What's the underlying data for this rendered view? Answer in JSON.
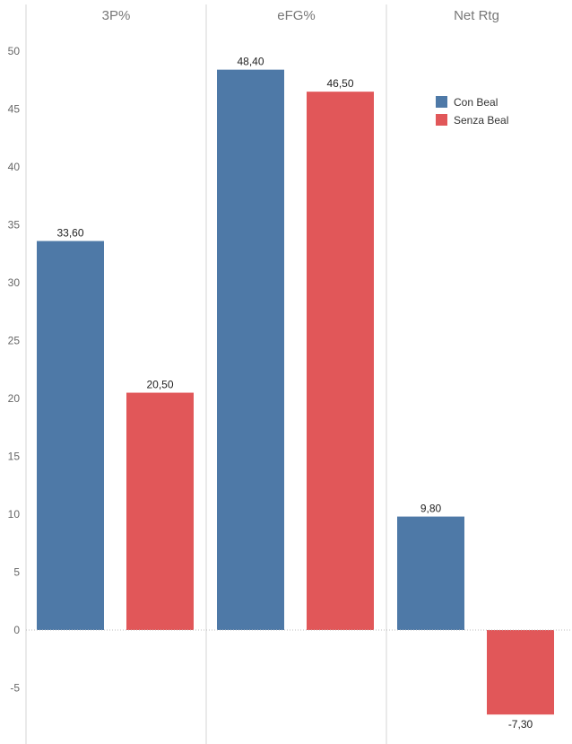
{
  "chart_data": {
    "type": "bar",
    "categories": [
      "3P%",
      "eFG%",
      "Net Rtg"
    ],
    "series": [
      {
        "name": "Con Beal",
        "values": [
          33.6,
          48.4,
          9.8
        ],
        "labels": [
          "33,60",
          "48,40",
          "9,80"
        ],
        "color": "#4e79a7"
      },
      {
        "name": "Senza Beal",
        "values": [
          20.5,
          46.5,
          -7.3
        ],
        "labels": [
          "20,50",
          "46,50",
          "-7,30"
        ],
        "color": "#e15759"
      }
    ],
    "y_ticks": [
      50,
      45,
      40,
      35,
      30,
      25,
      20,
      15,
      10,
      5,
      0,
      -5
    ],
    "ylim": [
      -10,
      54
    ],
    "legend_position": "top-right",
    "grid": false,
    "zero_line": true
  }
}
